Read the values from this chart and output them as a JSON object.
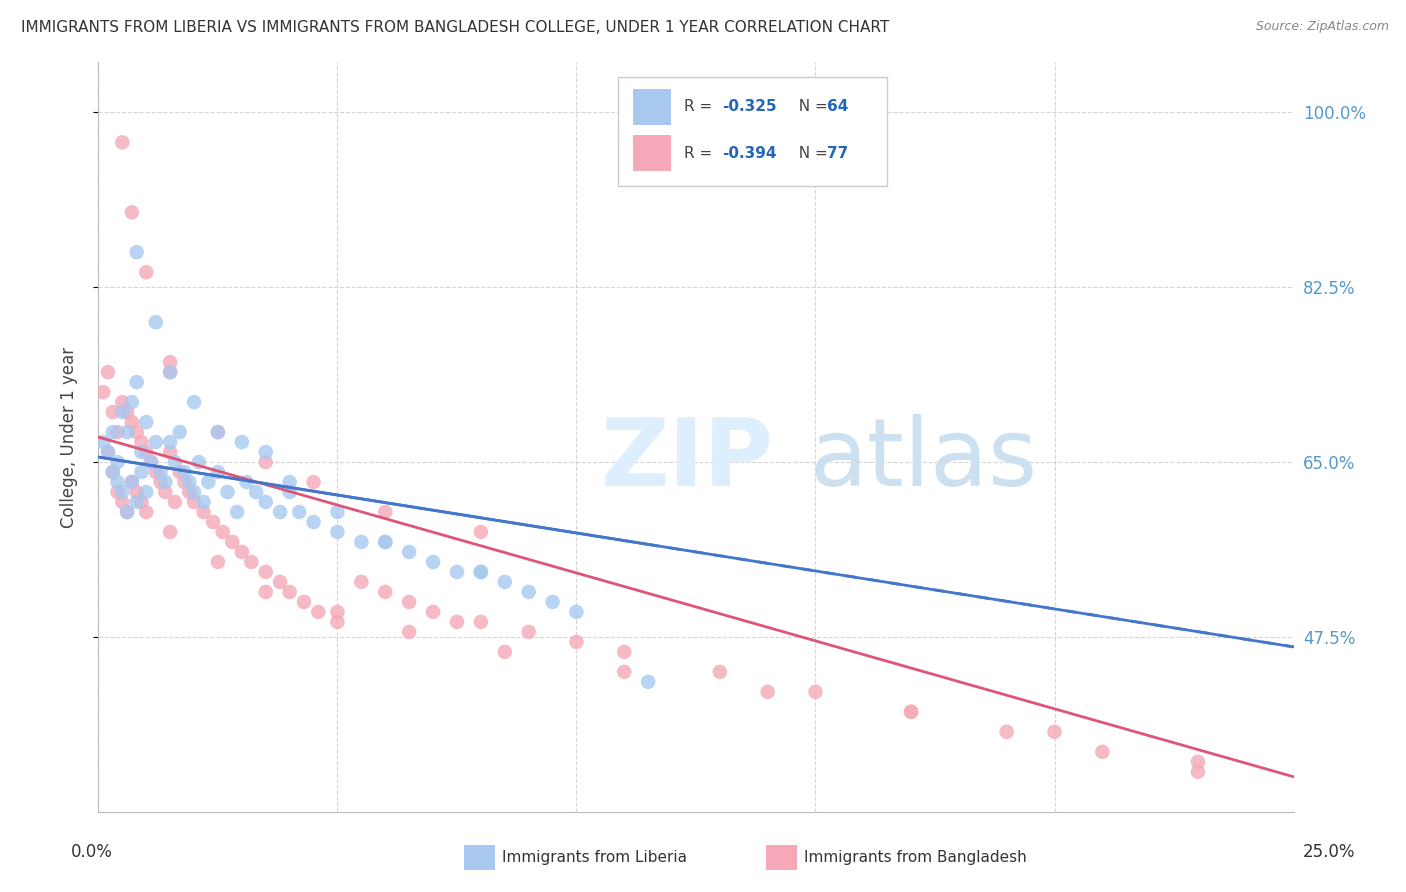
{
  "title": "IMMIGRANTS FROM LIBERIA VS IMMIGRANTS FROM BANGLADESH COLLEGE, UNDER 1 YEAR CORRELATION CHART",
  "source": "Source: ZipAtlas.com",
  "ylabel": "College, Under 1 year",
  "ytick_vals": [
    1.0,
    0.825,
    0.65,
    0.475
  ],
  "ytick_labels": [
    "100.0%",
    "82.5%",
    "65.0%",
    "47.5%"
  ],
  "xmin": 0.0,
  "xmax": 0.25,
  "ymin": 0.3,
  "ymax": 1.05,
  "color_liberia": "#a8c8f0",
  "color_bangladesh": "#f4a8b8",
  "line_color_liberia": "#4477cc",
  "line_color_bangladesh": "#dd5577",
  "R_liberia": -0.325,
  "N_liberia": 64,
  "R_bangladesh": -0.394,
  "N_bangladesh": 77,
  "lib_line_x0": 0.0,
  "lib_line_y0": 0.655,
  "lib_line_x1": 0.25,
  "lib_line_y1": 0.465,
  "ban_line_x0": 0.0,
  "ban_line_y0": 0.675,
  "ban_line_x1": 0.25,
  "ban_line_y1": 0.335,
  "lib_x": [
    0.001,
    0.002,
    0.003,
    0.003,
    0.004,
    0.004,
    0.005,
    0.005,
    0.006,
    0.006,
    0.007,
    0.007,
    0.008,
    0.008,
    0.009,
    0.009,
    0.01,
    0.01,
    0.011,
    0.012,
    0.013,
    0.014,
    0.015,
    0.016,
    0.017,
    0.018,
    0.019,
    0.02,
    0.021,
    0.022,
    0.023,
    0.025,
    0.027,
    0.029,
    0.031,
    0.033,
    0.035,
    0.038,
    0.04,
    0.042,
    0.045,
    0.05,
    0.055,
    0.06,
    0.065,
    0.07,
    0.075,
    0.08,
    0.085,
    0.09,
    0.095,
    0.1,
    0.008,
    0.012,
    0.015,
    0.02,
    0.025,
    0.03,
    0.035,
    0.04,
    0.05,
    0.06,
    0.08,
    0.115
  ],
  "lib_y": [
    0.67,
    0.66,
    0.68,
    0.64,
    0.65,
    0.63,
    0.7,
    0.62,
    0.68,
    0.6,
    0.71,
    0.63,
    0.73,
    0.61,
    0.66,
    0.64,
    0.69,
    0.62,
    0.65,
    0.67,
    0.64,
    0.63,
    0.67,
    0.65,
    0.68,
    0.64,
    0.63,
    0.62,
    0.65,
    0.61,
    0.63,
    0.64,
    0.62,
    0.6,
    0.63,
    0.62,
    0.61,
    0.6,
    0.62,
    0.6,
    0.59,
    0.58,
    0.57,
    0.57,
    0.56,
    0.55,
    0.54,
    0.54,
    0.53,
    0.52,
    0.51,
    0.5,
    0.86,
    0.79,
    0.74,
    0.71,
    0.68,
    0.67,
    0.66,
    0.63,
    0.6,
    0.57,
    0.54,
    0.43
  ],
  "ban_x": [
    0.001,
    0.002,
    0.002,
    0.003,
    0.003,
    0.004,
    0.004,
    0.005,
    0.005,
    0.006,
    0.006,
    0.007,
    0.007,
    0.008,
    0.008,
    0.009,
    0.009,
    0.01,
    0.01,
    0.011,
    0.012,
    0.013,
    0.014,
    0.015,
    0.016,
    0.017,
    0.018,
    0.019,
    0.02,
    0.022,
    0.024,
    0.026,
    0.028,
    0.03,
    0.032,
    0.035,
    0.038,
    0.04,
    0.043,
    0.046,
    0.05,
    0.055,
    0.06,
    0.065,
    0.07,
    0.075,
    0.08,
    0.09,
    0.1,
    0.11,
    0.13,
    0.15,
    0.17,
    0.19,
    0.21,
    0.23,
    0.015,
    0.025,
    0.035,
    0.045,
    0.06,
    0.08,
    0.015,
    0.025,
    0.035,
    0.05,
    0.065,
    0.085,
    0.11,
    0.14,
    0.17,
    0.2,
    0.23,
    0.005,
    0.007,
    0.01,
    0.015
  ],
  "ban_y": [
    0.72,
    0.74,
    0.66,
    0.7,
    0.64,
    0.68,
    0.62,
    0.71,
    0.61,
    0.7,
    0.6,
    0.69,
    0.63,
    0.68,
    0.62,
    0.67,
    0.61,
    0.66,
    0.6,
    0.65,
    0.64,
    0.63,
    0.62,
    0.66,
    0.61,
    0.64,
    0.63,
    0.62,
    0.61,
    0.6,
    0.59,
    0.58,
    0.57,
    0.56,
    0.55,
    0.54,
    0.53,
    0.52,
    0.51,
    0.5,
    0.49,
    0.53,
    0.52,
    0.51,
    0.5,
    0.49,
    0.49,
    0.48,
    0.47,
    0.46,
    0.44,
    0.42,
    0.4,
    0.38,
    0.36,
    0.34,
    0.74,
    0.68,
    0.65,
    0.63,
    0.6,
    0.58,
    0.58,
    0.55,
    0.52,
    0.5,
    0.48,
    0.46,
    0.44,
    0.42,
    0.4,
    0.38,
    0.35,
    0.97,
    0.9,
    0.84,
    0.75
  ]
}
